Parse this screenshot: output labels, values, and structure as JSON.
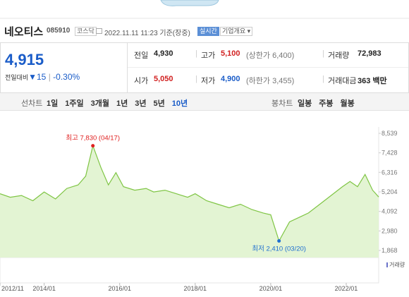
{
  "header": {
    "name": "네오티스",
    "code": "085910",
    "market": "코스닥",
    "time": "2022.11.11 11:23",
    "status": "기준(장중)",
    "realtime": "실시간",
    "overview": "기업개요"
  },
  "quote": {
    "price": "4,915",
    "change_label": "전일대비",
    "change": "▼15",
    "rate": "-0.30%",
    "cells": [
      [
        "전일",
        "4,930"
      ],
      [
        "고가",
        "5,100",
        "(상한가 6,400)"
      ],
      [
        "거래량",
        "72,983"
      ],
      [
        "시가",
        "5,050"
      ],
      [
        "저가",
        "4,900",
        "(하한가 3,455)"
      ],
      [
        "거래대금",
        "363 백만"
      ]
    ]
  },
  "tabs": {
    "line_chart": "선차트",
    "line_periods": [
      "1일",
      "1주일",
      "3개월",
      "1년",
      "3년",
      "5년",
      "10년"
    ],
    "candle_chart": "봉차트",
    "candle_periods": [
      "일봉",
      "주봉",
      "월봉"
    ]
  },
  "chart_data": {
    "type": "line",
    "color": "#7fc544",
    "x": [
      2012.83,
      2013.1,
      2013.4,
      2013.7,
      2014.0,
      2014.3,
      2014.6,
      2014.9,
      2015.1,
      2015.29,
      2015.5,
      2015.7,
      2015.9,
      2016.1,
      2016.4,
      2016.7,
      2016.9,
      2017.2,
      2017.5,
      2017.8,
      2018.0,
      2018.3,
      2018.6,
      2018.9,
      2019.2,
      2019.5,
      2019.8,
      2020.0,
      2020.22,
      2020.5,
      2020.8,
      2021.0,
      2021.3,
      2021.6,
      2021.9,
      2022.1,
      2022.3,
      2022.5,
      2022.7,
      2022.86
    ],
    "values": [
      5100,
      4900,
      5000,
      4700,
      5200,
      4800,
      5400,
      5600,
      6100,
      7830,
      6600,
      5600,
      6300,
      5500,
      5300,
      5400,
      5200,
      5300,
      5100,
      4900,
      5100,
      4700,
      4500,
      4300,
      4500,
      4200,
      4000,
      3900,
      2410,
      3500,
      3800,
      4000,
      4500,
      5000,
      5500,
      5800,
      5500,
      6200,
      5300,
      4915
    ],
    "xlim": [
      2012.83,
      2022.86
    ],
    "xticks": [
      {
        "value": 2012.83,
        "label": "2012/11"
      },
      {
        "value": 2014.0,
        "label": "2014/01"
      },
      {
        "value": 2016.0,
        "label": "2016/01"
      },
      {
        "value": 2018.0,
        "label": "2018/01"
      },
      {
        "value": 2020.0,
        "label": "2020/01"
      },
      {
        "value": 2022.0,
        "label": "2022/01"
      }
    ],
    "ylim": [
      1868,
      8539
    ],
    "yticks": [
      {
        "value": 8539,
        "label": "8,539"
      },
      {
        "value": 7428,
        "label": "7,428"
      },
      {
        "value": 6316,
        "label": "6,316"
      },
      {
        "value": 5204,
        "label": "5,204"
      },
      {
        "value": 4092,
        "label": "4,092"
      },
      {
        "value": 2980,
        "label": "2,980"
      },
      {
        "value": 1868,
        "label": "1,868"
      }
    ],
    "annotations": [
      {
        "text": "최고 7,830 (04/17)",
        "index": 9,
        "color": "#e02020"
      },
      {
        "text": "최저 2,410 (03/20)",
        "index": 28,
        "color": "#2070d0"
      }
    ],
    "volume_legend": "거래량"
  }
}
